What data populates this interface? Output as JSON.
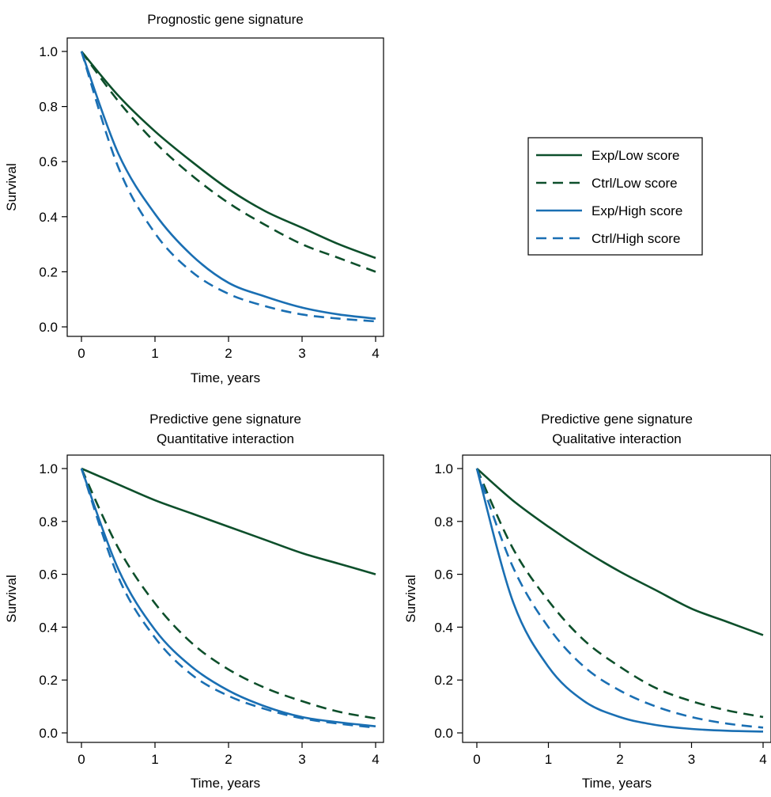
{
  "chart_data": [
    {
      "type": "line",
      "title_lines": [
        "Prognostic gene signature"
      ],
      "xlabel": "Time, years",
      "ylabel": "Survival",
      "xlim": [
        0,
        4
      ],
      "ylim": [
        0,
        1
      ],
      "x_ticks": [
        0,
        1,
        2,
        3,
        4
      ],
      "y_ticks": [
        0.0,
        0.2,
        0.4,
        0.6,
        0.8,
        1.0
      ],
      "y_tick_labels": [
        "0.0",
        "0.2",
        "0.4",
        "0.6",
        "0.8",
        "1.0"
      ],
      "x_tick_labels": [
        "0",
        "1",
        "2",
        "3",
        "4"
      ],
      "series": [
        {
          "name": "Exp/Low score",
          "color": "#0d4f2b",
          "dash": "solid",
          "x": [
            0,
            0.5,
            1,
            1.5,
            2,
            2.5,
            3,
            3.5,
            4
          ],
          "values": [
            1.0,
            0.84,
            0.71,
            0.6,
            0.5,
            0.42,
            0.36,
            0.3,
            0.25
          ]
        },
        {
          "name": "Ctrl/Low score",
          "color": "#0d4f2b",
          "dash": "dashed",
          "x": [
            0,
            0.5,
            1,
            1.5,
            2,
            2.5,
            3,
            3.5,
            4
          ],
          "values": [
            1.0,
            0.82,
            0.67,
            0.55,
            0.45,
            0.37,
            0.3,
            0.25,
            0.2
          ]
        },
        {
          "name": "Exp/High score",
          "color": "#1a6fb3",
          "dash": "solid",
          "x": [
            0,
            0.5,
            1,
            1.5,
            2,
            2.5,
            3,
            3.5,
            4
          ],
          "values": [
            1.0,
            0.63,
            0.41,
            0.26,
            0.16,
            0.11,
            0.07,
            0.045,
            0.03
          ]
        },
        {
          "name": "Ctrl/High score",
          "color": "#1a6fb3",
          "dash": "dashed",
          "x": [
            0,
            0.5,
            1,
            1.5,
            2,
            2.5,
            3,
            3.5,
            4
          ],
          "values": [
            1.0,
            0.58,
            0.34,
            0.2,
            0.12,
            0.075,
            0.045,
            0.03,
            0.02
          ]
        }
      ]
    },
    {
      "type": "line",
      "title_lines": [
        "Predictive gene signature",
        "Quantitative interaction"
      ],
      "xlabel": "Time, years",
      "ylabel": "Survival",
      "xlim": [
        0,
        4
      ],
      "ylim": [
        0,
        1
      ],
      "x_ticks": [
        0,
        1,
        2,
        3,
        4
      ],
      "y_ticks": [
        0.0,
        0.2,
        0.4,
        0.6,
        0.8,
        1.0
      ],
      "y_tick_labels": [
        "0.0",
        "0.2",
        "0.4",
        "0.6",
        "0.8",
        "1.0"
      ],
      "x_tick_labels": [
        "0",
        "1",
        "2",
        "3",
        "4"
      ],
      "series": [
        {
          "name": "Exp/Low score",
          "color": "#0d4f2b",
          "dash": "solid",
          "x": [
            0,
            0.5,
            1,
            1.5,
            2,
            2.5,
            3,
            3.5,
            4
          ],
          "values": [
            1.0,
            0.94,
            0.88,
            0.83,
            0.78,
            0.73,
            0.68,
            0.64,
            0.6
          ]
        },
        {
          "name": "Ctrl/Low score",
          "color": "#0d4f2b",
          "dash": "dashed",
          "x": [
            0,
            0.5,
            1,
            1.5,
            2,
            2.5,
            3,
            3.5,
            4
          ],
          "values": [
            1.0,
            0.7,
            0.49,
            0.34,
            0.24,
            0.17,
            0.12,
            0.08,
            0.055
          ]
        },
        {
          "name": "Exp/High score",
          "color": "#1a6fb3",
          "dash": "solid",
          "x": [
            0,
            0.5,
            1,
            1.5,
            2,
            2.5,
            3,
            3.5,
            4
          ],
          "values": [
            1.0,
            0.62,
            0.39,
            0.25,
            0.16,
            0.1,
            0.06,
            0.04,
            0.025
          ]
        },
        {
          "name": "Ctrl/High score",
          "color": "#1a6fb3",
          "dash": "dashed",
          "x": [
            0,
            0.5,
            1,
            1.5,
            2,
            2.5,
            3,
            3.5,
            4
          ],
          "values": [
            1.0,
            0.59,
            0.36,
            0.22,
            0.14,
            0.09,
            0.055,
            0.035,
            0.02
          ]
        }
      ]
    },
    {
      "type": "line",
      "title_lines": [
        "Predictive gene signature",
        "Qualitative interaction"
      ],
      "xlabel": "Time, years",
      "ylabel": "Survival",
      "xlim": [
        0,
        4
      ],
      "ylim": [
        0,
        1
      ],
      "x_ticks": [
        0,
        1,
        2,
        3,
        4
      ],
      "y_ticks": [
        0.0,
        0.2,
        0.4,
        0.6,
        0.8,
        1.0
      ],
      "y_tick_labels": [
        "0.0",
        "0.2",
        "0.4",
        "0.6",
        "0.8",
        "1.0"
      ],
      "x_tick_labels": [
        "0",
        "1",
        "2",
        "3",
        "4"
      ],
      "series": [
        {
          "name": "Exp/Low score",
          "color": "#0d4f2b",
          "dash": "solid",
          "x": [
            0,
            0.5,
            1,
            1.5,
            2,
            2.5,
            3,
            3.5,
            4
          ],
          "values": [
            1.0,
            0.88,
            0.78,
            0.69,
            0.61,
            0.54,
            0.47,
            0.42,
            0.37
          ]
        },
        {
          "name": "Ctrl/Low score",
          "color": "#0d4f2b",
          "dash": "dashed",
          "x": [
            0,
            0.5,
            1,
            1.5,
            2,
            2.5,
            3,
            3.5,
            4
          ],
          "values": [
            1.0,
            0.7,
            0.5,
            0.35,
            0.25,
            0.17,
            0.12,
            0.085,
            0.06
          ]
        },
        {
          "name": "Exp/High score",
          "color": "#1a6fb3",
          "dash": "solid",
          "x": [
            0,
            0.5,
            1,
            1.5,
            2,
            2.5,
            3,
            3.5,
            4
          ],
          "values": [
            1.0,
            0.5,
            0.25,
            0.12,
            0.06,
            0.03,
            0.015,
            0.008,
            0.005
          ]
        },
        {
          "name": "Ctrl/High score",
          "color": "#1a6fb3",
          "dash": "dashed",
          "x": [
            0,
            0.5,
            1,
            1.5,
            2,
            2.5,
            3,
            3.5,
            4
          ],
          "values": [
            1.0,
            0.63,
            0.4,
            0.25,
            0.16,
            0.1,
            0.06,
            0.035,
            0.02
          ]
        }
      ]
    }
  ],
  "legend": {
    "placement": "right of top panel",
    "entries": [
      {
        "label": "Exp/Low score",
        "color": "#0d4f2b",
        "dash": "solid"
      },
      {
        "label": "Ctrl/Low score",
        "color": "#0d4f2b",
        "dash": "dashed"
      },
      {
        "label": "Exp/High score",
        "color": "#1a6fb3",
        "dash": "solid"
      },
      {
        "label": "Ctrl/High score",
        "color": "#1a6fb3",
        "dash": "dashed"
      }
    ]
  }
}
